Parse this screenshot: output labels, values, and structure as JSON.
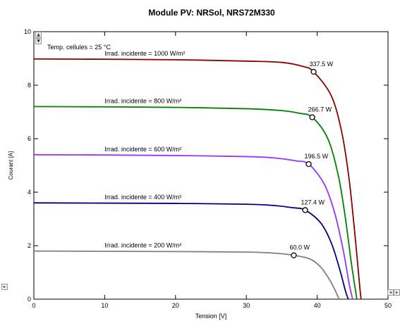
{
  "chart_data": {
    "type": "line",
    "title": "Module PV:  NRSol,  NRS72M330",
    "xlabel": "Tension [V]",
    "ylabel": "Courant [A]",
    "xlim": [
      0,
      50
    ],
    "ylim": [
      0,
      10
    ],
    "x_ticks": [
      0,
      10,
      20,
      30,
      40,
      50
    ],
    "y_ticks": [
      0,
      2,
      4,
      6,
      8,
      10
    ],
    "grid": false,
    "annotation": "Temp. cellules = 25 °C",
    "series": [
      {
        "name": "Irrad. incidente = 1000 W/m²",
        "color": "#8b0000",
        "values": [
          [
            0,
            8.98
          ],
          [
            10,
            8.97
          ],
          [
            20,
            8.95
          ],
          [
            30,
            8.9
          ],
          [
            35,
            8.85
          ],
          [
            38,
            8.7
          ],
          [
            39.5,
            8.5
          ],
          [
            42,
            7.6
          ],
          [
            43.5,
            6.2
          ],
          [
            44.5,
            4.5
          ],
          [
            45.3,
            2.5
          ],
          [
            46,
            0.5
          ],
          [
            46.2,
            0
          ]
        ],
        "mpp": [
          39.5,
          8.5
        ],
        "mpp_label": "337.5 W"
      },
      {
        "name": "Irrad. incidente = 800 W/m²",
        "color": "#008000",
        "values": [
          [
            0,
            7.2
          ],
          [
            10,
            7.19
          ],
          [
            20,
            7.17
          ],
          [
            30,
            7.12
          ],
          [
            35,
            7.05
          ],
          [
            37.5,
            6.95
          ],
          [
            39.3,
            6.8
          ],
          [
            41.5,
            6.0
          ],
          [
            43,
            4.6
          ],
          [
            44,
            3.0
          ],
          [
            44.8,
            1.4
          ],
          [
            45.6,
            0
          ]
        ],
        "mpp": [
          39.3,
          6.8
        ],
        "mpp_label": "266.7 W"
      },
      {
        "name": "Irrad. incidente = 600 W/m²",
        "color": "#9933ff",
        "values": [
          [
            0,
            5.4
          ],
          [
            10,
            5.39
          ],
          [
            20,
            5.37
          ],
          [
            30,
            5.33
          ],
          [
            34,
            5.28
          ],
          [
            37,
            5.17
          ],
          [
            38.8,
            5.05
          ],
          [
            41,
            4.3
          ],
          [
            42.5,
            3.2
          ],
          [
            43.7,
            1.8
          ],
          [
            44.5,
            0.6
          ],
          [
            45,
            0
          ]
        ],
        "mpp": [
          38.8,
          5.05
        ],
        "mpp_label": "196.5 W"
      },
      {
        "name": "Irrad. incidente = 400 W/m²",
        "color": "#000080",
        "values": [
          [
            0,
            3.6
          ],
          [
            10,
            3.59
          ],
          [
            20,
            3.58
          ],
          [
            30,
            3.55
          ],
          [
            34,
            3.5
          ],
          [
            36.5,
            3.42
          ],
          [
            38.3,
            3.33
          ],
          [
            40.5,
            2.85
          ],
          [
            42,
            2.1
          ],
          [
            43.2,
            1.1
          ],
          [
            44,
            0.3
          ],
          [
            44.4,
            0
          ]
        ],
        "mpp": [
          38.3,
          3.33
        ],
        "mpp_label": "127.4 W"
      },
      {
        "name": "Irrad. incidente = 200 W/m²",
        "color": "#808080",
        "values": [
          [
            0,
            1.8
          ],
          [
            10,
            1.79
          ],
          [
            20,
            1.78
          ],
          [
            30,
            1.76
          ],
          [
            34,
            1.72
          ],
          [
            36.7,
            1.64
          ],
          [
            39,
            1.5
          ],
          [
            40.5,
            1.2
          ],
          [
            41.7,
            0.75
          ],
          [
            42.5,
            0.35
          ],
          [
            43.1,
            0
          ]
        ],
        "mpp": [
          36.7,
          1.64
        ],
        "mpp_label": "60.0 W"
      }
    ]
  }
}
